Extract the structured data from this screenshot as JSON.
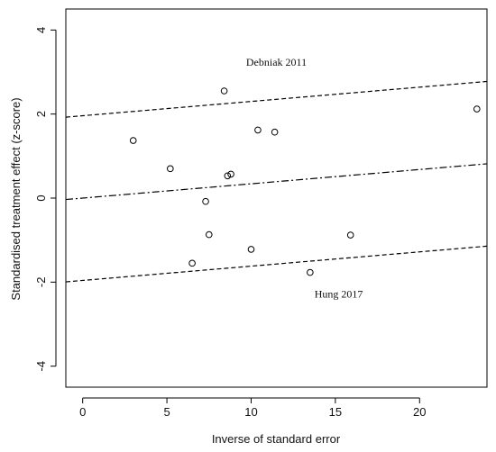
{
  "chart_data": {
    "type": "scatter",
    "title": "",
    "xlabel": "Inverse of standard error",
    "ylabel": "Standardised treatment effect (z-score)",
    "xlim": [
      -1,
      24
    ],
    "ylim": [
      -4.5,
      4.5
    ],
    "xticks": [
      0,
      5,
      10,
      15,
      20
    ],
    "yticks": [
      -4,
      -2,
      0,
      2,
      4
    ],
    "grid": false,
    "points": [
      {
        "x": 3.0,
        "y": 1.37
      },
      {
        "x": 5.2,
        "y": 0.7
      },
      {
        "x": 6.5,
        "y": -1.55
      },
      {
        "x": 7.3,
        "y": -0.08
      },
      {
        "x": 7.5,
        "y": -0.87
      },
      {
        "x": 8.4,
        "y": 2.55
      },
      {
        "x": 8.6,
        "y": 0.53
      },
      {
        "x": 8.8,
        "y": 0.57
      },
      {
        "x": 10.0,
        "y": -1.22
      },
      {
        "x": 10.4,
        "y": 1.62
      },
      {
        "x": 11.4,
        "y": 1.57
      },
      {
        "x": 13.5,
        "y": -1.77
      },
      {
        "x": 15.9,
        "y": -0.88
      },
      {
        "x": 23.4,
        "y": 2.12
      }
    ],
    "lines": [
      {
        "style": "dashed",
        "intercept": 1.96,
        "slope": 0.034
      },
      {
        "style": "dotdash",
        "intercept": 0.0,
        "slope": 0.034
      },
      {
        "style": "dashed",
        "intercept": -1.96,
        "slope": 0.034
      }
    ],
    "annotations": [
      {
        "text": "Debniak 2011",
        "x": 11.5,
        "y": 3.15
      },
      {
        "text": "Hung 2017",
        "x": 15.2,
        "y": -2.37
      }
    ]
  }
}
